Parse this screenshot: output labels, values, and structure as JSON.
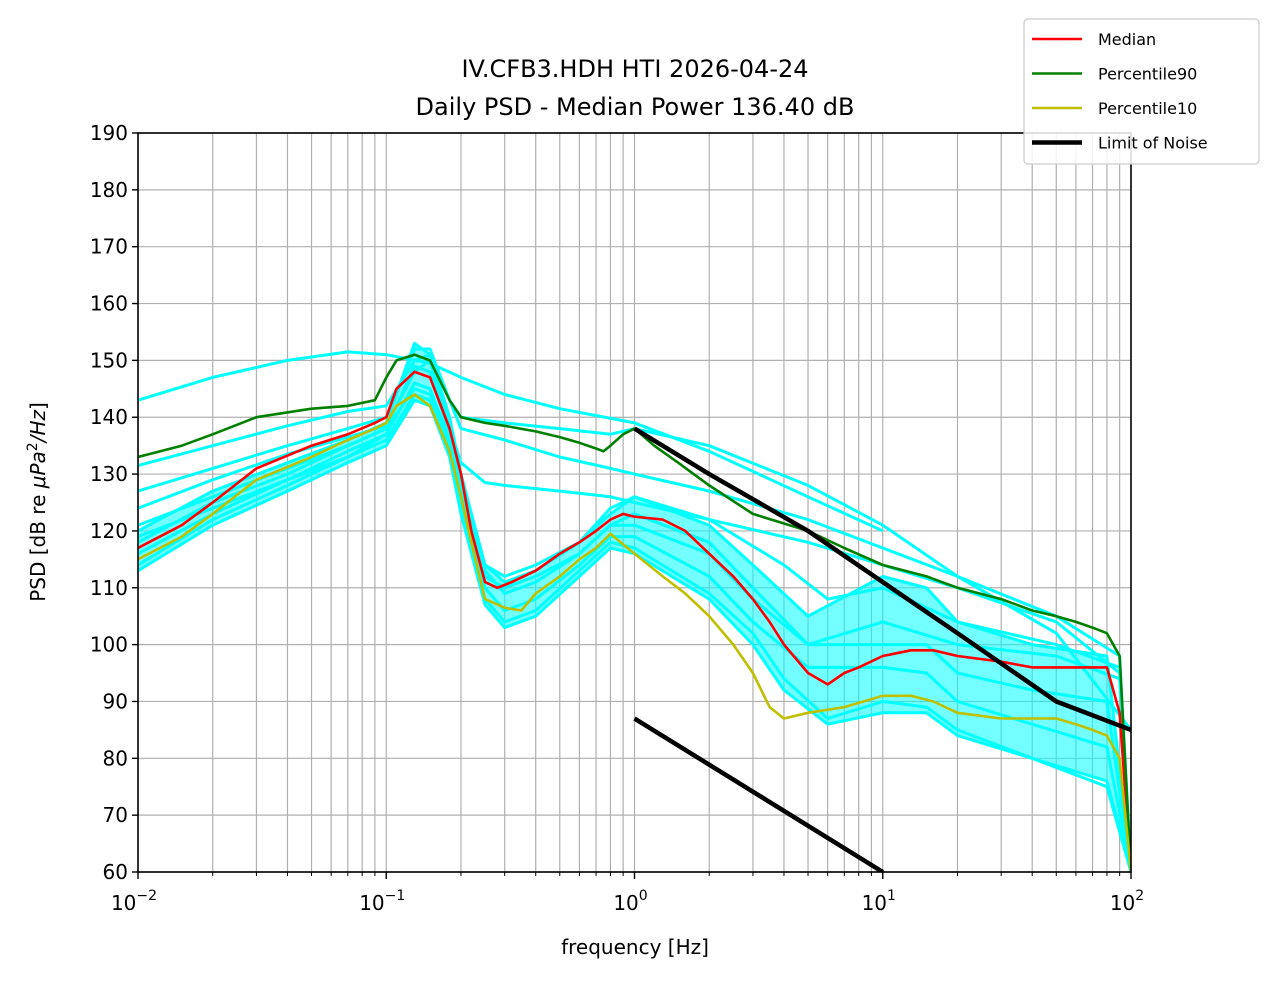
{
  "chart_data": {
    "type": "line",
    "title": "IV.CFB3.HDH HTI 2026-04-24",
    "subtitle": "Daily PSD - Median Power 136.40 dB",
    "xlabel": "frequency [Hz]",
    "ylabel_prefix": "PSD [dB re ",
    "ylabel_math": "μPa",
    "ylabel_sup": "2",
    "ylabel_suffix_math": "/Hz",
    "ylabel_close": "]",
    "xscale": "log",
    "xlim": [
      0.01,
      100
    ],
    "ylim": [
      60,
      190
    ],
    "grid": true,
    "legend_position": "top-right",
    "x_ticks": [
      {
        "value": 0.01,
        "base": "10",
        "exp": "−2"
      },
      {
        "value": 0.1,
        "base": "10",
        "exp": "−1"
      },
      {
        "value": 1,
        "base": "10",
        "exp": "0"
      },
      {
        "value": 10,
        "base": "10",
        "exp": "1"
      },
      {
        "value": 100,
        "base": "10",
        "exp": "2"
      }
    ],
    "y_ticks": [
      "60",
      "70",
      "80",
      "90",
      "100",
      "110",
      "120",
      "130",
      "140",
      "150",
      "160",
      "170",
      "180",
      "190"
    ],
    "legend": [
      {
        "label": "Median",
        "color": "#ff0000",
        "width": 2
      },
      {
        "label": "Percentile90",
        "color": "#008000",
        "width": 2
      },
      {
        "label": "Percentile10",
        "color": "#bfbf00",
        "width": 2
      },
      {
        "label": "Limit of Noise",
        "color": "#000000",
        "width": 4
      }
    ],
    "background_color": "#00ffff",
    "series": [
      {
        "name": "Median",
        "color": "#ff0000",
        "x": [
          0.01,
          0.015,
          0.02,
          0.03,
          0.05,
          0.07,
          0.09,
          0.1,
          0.11,
          0.13,
          0.15,
          0.18,
          0.2,
          0.22,
          0.25,
          0.28,
          0.32,
          0.4,
          0.5,
          0.6,
          0.7,
          0.8,
          0.9,
          1.0,
          1.3,
          1.6,
          2.0,
          2.5,
          3.0,
          3.5,
          4.0,
          5.0,
          6.0,
          7.0,
          8.0,
          10,
          13,
          16,
          20,
          30,
          40,
          50,
          60,
          70,
          80,
          90,
          100
        ],
        "y": [
          117,
          121,
          125,
          131,
          135,
          137,
          139,
          140,
          145,
          148,
          147,
          138,
          130,
          120,
          111,
          110,
          111,
          113,
          116,
          118,
          120,
          122,
          123,
          122.5,
          122,
          120,
          116,
          112,
          108,
          104,
          100,
          95,
          93,
          95,
          96,
          98,
          99,
          99,
          98,
          97,
          96,
          96,
          96,
          96,
          96,
          88,
          60
        ]
      },
      {
        "name": "Percentile90",
        "color": "#008000",
        "x": [
          0.01,
          0.015,
          0.02,
          0.03,
          0.05,
          0.07,
          0.09,
          0.1,
          0.11,
          0.13,
          0.15,
          0.18,
          0.2,
          0.25,
          0.3,
          0.4,
          0.5,
          0.6,
          0.7,
          0.75,
          0.8,
          0.9,
          1.0,
          1.2,
          1.5,
          2.0,
          3.0,
          5.0,
          7.0,
          10,
          15,
          20,
          30,
          40,
          50,
          60,
          70,
          80,
          90,
          100
        ],
        "y": [
          133,
          135,
          137,
          140,
          141.5,
          142,
          143,
          147,
          150,
          151,
          150,
          143,
          140,
          139,
          138.5,
          137.5,
          136.5,
          135.5,
          134.5,
          134,
          135,
          137,
          138,
          135,
          132,
          128,
          123,
          120,
          117,
          114,
          112,
          110,
          108,
          106,
          105,
          104,
          103,
          102,
          98,
          60
        ]
      },
      {
        "name": "Percentile10",
        "color": "#bfbf00",
        "x": [
          0.01,
          0.015,
          0.02,
          0.03,
          0.05,
          0.07,
          0.09,
          0.1,
          0.11,
          0.13,
          0.15,
          0.18,
          0.2,
          0.22,
          0.25,
          0.3,
          0.35,
          0.4,
          0.5,
          0.6,
          0.7,
          0.8,
          1.0,
          1.3,
          1.6,
          2.0,
          2.5,
          3.0,
          3.5,
          4.0,
          5.0,
          7.0,
          10,
          13,
          16,
          20,
          30,
          40,
          50,
          60,
          70,
          80,
          90,
          100
        ],
        "y": [
          115,
          119,
          123,
          129,
          133,
          136,
          138,
          139,
          142,
          144,
          142,
          134,
          126,
          118,
          108,
          106.5,
          106,
          109,
          112,
          115,
          117,
          119.5,
          116,
          112,
          109,
          105,
          100,
          95,
          89,
          87,
          88,
          89,
          91,
          91,
          90,
          88,
          87,
          87,
          87,
          86,
          85,
          84,
          80,
          60
        ]
      },
      {
        "name": "Limit of Noise (upper)",
        "color": "#000000",
        "x": [
          1.0,
          2.0,
          5.0,
          10,
          20,
          50,
          100
        ],
        "y": [
          138,
          130,
          120,
          111,
          102,
          90,
          85
        ]
      },
      {
        "name": "Limit of Noise (lower)",
        "color": "#000000",
        "x": [
          1.0,
          10
        ],
        "y": [
          87,
          60
        ]
      }
    ],
    "background_traces": [
      {
        "x": [
          0.01,
          0.02,
          0.04,
          0.07,
          0.1,
          0.15,
          0.2,
          0.3,
          0.5,
          1.0,
          2.0,
          5.0,
          10
        ],
        "y": [
          143,
          147,
          150,
          151.5,
          151,
          149.5,
          147,
          144,
          141.5,
          139,
          134,
          126,
          120
        ]
      },
      {
        "x": [
          0.01,
          0.02,
          0.04,
          0.07,
          0.1,
          0.13,
          0.15,
          0.18,
          0.2,
          0.3,
          0.5,
          0.8,
          1.0,
          2.0,
          5.0,
          10,
          20,
          50,
          100
        ],
        "y": [
          131.5,
          135,
          138.5,
          141,
          142,
          150,
          151,
          143,
          140,
          139,
          138,
          137,
          138,
          135,
          128,
          121,
          112,
          102,
          85
        ]
      },
      {
        "x": [
          0.01,
          0.02,
          0.04,
          0.07,
          0.1,
          0.13,
          0.15,
          0.18,
          0.2,
          0.3,
          0.5,
          0.8,
          1.0,
          2.0,
          5.0,
          10,
          20,
          50,
          90,
          100
        ],
        "y": [
          127,
          131,
          135,
          138,
          140,
          152,
          152,
          143,
          138,
          136,
          133,
          131,
          130,
          127,
          122,
          117,
          112,
          105,
          98,
          60
        ]
      },
      {
        "x": [
          0.01,
          0.02,
          0.04,
          0.07,
          0.1,
          0.13,
          0.15,
          0.18,
          0.2,
          0.25,
          0.3,
          0.5,
          0.8,
          1.0,
          2.0,
          5.0,
          10,
          20,
          50,
          90,
          100
        ],
        "y": [
          124,
          129,
          133.5,
          136.5,
          138.5,
          148,
          150,
          138,
          132,
          128.5,
          128,
          127,
          126,
          125,
          122,
          118,
          114,
          110,
          104,
          95,
          60
        ]
      },
      {
        "x": [
          0.01,
          0.02,
          0.04,
          0.07,
          0.1,
          0.13,
          0.15,
          0.18,
          0.2,
          0.25,
          0.3,
          0.4,
          0.6,
          0.8,
          1.0,
          2.0,
          4.0,
          6.0,
          10,
          20,
          50,
          90,
          100
        ],
        "y": [
          121,
          126,
          131,
          135,
          138,
          145,
          144,
          136,
          126,
          114,
          112,
          114,
          118,
          124,
          126,
          122,
          114,
          108,
          110,
          104,
          100,
          96,
          60
        ]
      },
      {
        "x": [
          0.01,
          0.02,
          0.04,
          0.07,
          0.1,
          0.13,
          0.15,
          0.18,
          0.2,
          0.25,
          0.3,
          0.4,
          0.6,
          0.8,
          1.0,
          2.0,
          3.0,
          5.0,
          10,
          20,
          50,
          90,
          100
        ],
        "y": [
          119,
          124,
          129,
          133,
          137,
          146,
          145,
          136,
          127,
          112,
          110,
          112,
          116,
          121,
          121,
          116,
          108,
          100,
          104,
          100,
          98,
          94,
          60
        ]
      },
      {
        "x": [
          0.01,
          0.02,
          0.04,
          0.07,
          0.1,
          0.13,
          0.15,
          0.18,
          0.2,
          0.25,
          0.3,
          0.4,
          0.6,
          0.8,
          1.0,
          2.0,
          3.0,
          4.0,
          6.0,
          10,
          15,
          20,
          40,
          80,
          100
        ],
        "y": [
          113,
          121,
          127,
          132,
          135,
          143,
          142,
          133,
          123,
          107,
          103,
          105,
          112,
          117,
          116,
          108,
          100,
          92,
          86,
          88,
          88,
          84,
          80,
          76,
          60
        ]
      },
      {
        "x": [
          0.01,
          0.02,
          0.04,
          0.07,
          0.1,
          0.13,
          0.15,
          0.18,
          0.2,
          0.25,
          0.3,
          0.4,
          0.6,
          0.8,
          1.0,
          2.0,
          3.0,
          4.0,
          6.0,
          10,
          15,
          20,
          40,
          80,
          100
        ],
        "y": [
          114,
          122,
          128,
          133,
          136,
          144,
          143,
          134,
          124,
          108,
          104,
          106,
          113,
          118,
          117,
          109,
          102,
          94,
          87,
          90,
          89,
          85,
          80,
          75,
          60
        ]
      },
      {
        "x": [
          0.01,
          0.02,
          0.04,
          0.07,
          0.1,
          0.13,
          0.15,
          0.18,
          0.2,
          0.25,
          0.3,
          0.4,
          0.6,
          0.8,
          1.0,
          2.0,
          3.0,
          5.0,
          10,
          15,
          20,
          40,
          80,
          100
        ],
        "y": [
          116,
          123,
          129,
          134,
          137,
          146,
          145,
          135,
          125,
          110,
          106,
          108,
          114,
          119,
          119,
          112,
          104,
          96,
          96,
          95,
          90,
          86,
          82,
          60
        ]
      },
      {
        "x": [
          0.01,
          0.02,
          0.04,
          0.07,
          0.1,
          0.13,
          0.15,
          0.18,
          0.2,
          0.25,
          0.3,
          0.4,
          0.6,
          0.8,
          1.0,
          2.0,
          3.0,
          5.0,
          10,
          15,
          20,
          40,
          80,
          100
        ],
        "y": [
          118,
          125,
          130,
          135,
          138,
          149,
          148,
          137,
          128,
          113,
          109,
          111,
          116,
          121,
          123,
          118,
          110,
          100,
          100,
          100,
          95,
          92,
          90,
          60
        ]
      },
      {
        "x": [
          0.01,
          0.02,
          0.04,
          0.07,
          0.1,
          0.13,
          0.15,
          0.18,
          0.2,
          0.25,
          0.3,
          0.4,
          0.6,
          0.8,
          1.0,
          2.0,
          3.0,
          5.0,
          10,
          15,
          20,
          40,
          80,
          100
        ],
        "y": [
          120,
          127,
          132,
          136,
          139,
          153,
          151,
          140,
          130,
          114,
          111,
          113,
          118,
          123,
          126,
          121,
          114,
          105,
          112,
          110,
          104,
          100,
          98,
          60
        ]
      }
    ]
  }
}
